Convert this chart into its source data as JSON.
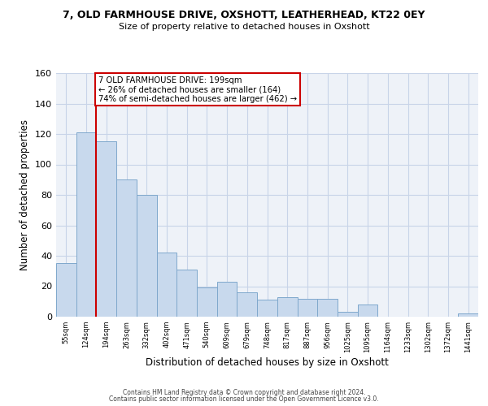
{
  "title": "7, OLD FARMHOUSE DRIVE, OXSHOTT, LEATHERHEAD, KT22 0EY",
  "subtitle": "Size of property relative to detached houses in Oxshott",
  "xlabel": "Distribution of detached houses by size in Oxshott",
  "ylabel": "Number of detached properties",
  "bin_labels": [
    "55sqm",
    "124sqm",
    "194sqm",
    "263sqm",
    "332sqm",
    "402sqm",
    "471sqm",
    "540sqm",
    "609sqm",
    "679sqm",
    "748sqm",
    "817sqm",
    "887sqm",
    "956sqm",
    "1025sqm",
    "1095sqm",
    "1164sqm",
    "1233sqm",
    "1302sqm",
    "1372sqm",
    "1441sqm"
  ],
  "bar_heights": [
    35,
    121,
    115,
    90,
    80,
    42,
    31,
    19,
    23,
    16,
    11,
    13,
    12,
    12,
    3,
    8,
    0,
    0,
    0,
    0,
    2
  ],
  "bar_color": "#c8d9ed",
  "bar_edge_color": "#7fa8cc",
  "highlight_color": "#cc0000",
  "annotation_text": "7 OLD FARMHOUSE DRIVE: 199sqm\n← 26% of detached houses are smaller (164)\n74% of semi-detached houses are larger (462) →",
  "ylim": [
    0,
    160
  ],
  "yticks": [
    0,
    20,
    40,
    60,
    80,
    100,
    120,
    140,
    160
  ],
  "footer_line1": "Contains HM Land Registry data © Crown copyright and database right 2024.",
  "footer_line2": "Contains public sector information licensed under the Open Government Licence v3.0.",
  "fig_width": 6.0,
  "fig_height": 5.0,
  "background_color": "#ffffff",
  "grid_color": "#c8d4e8",
  "plot_bg_color": "#eef2f8"
}
